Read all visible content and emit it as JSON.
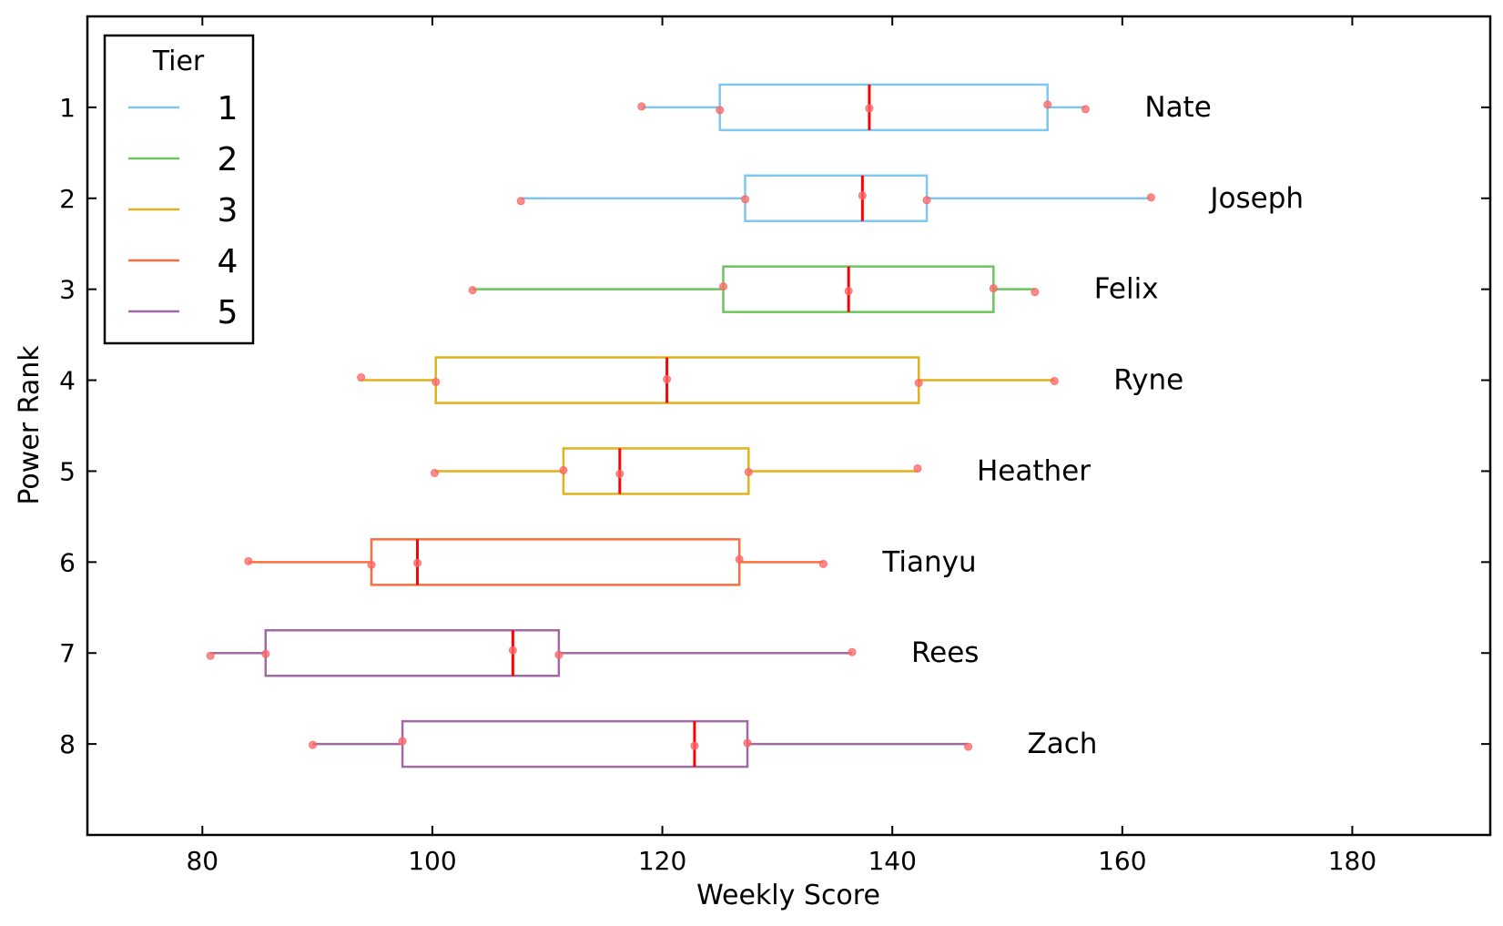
{
  "chart_data": {
    "type": "box",
    "orientation": "horizontal",
    "xlabel": "Weekly Score",
    "ylabel": "Power Rank",
    "xlim": [
      70,
      192
    ],
    "ylim": [
      9,
      0
    ],
    "xticks": [
      80,
      100,
      120,
      140,
      160,
      180
    ],
    "yticks": [
      1,
      2,
      3,
      4,
      5,
      6,
      7,
      8
    ],
    "grid": false,
    "median_color": "#ff0000",
    "point_color": "#ff6666",
    "legend": {
      "title": "Tier",
      "position": "top-left",
      "entries": [
        {
          "label": "1",
          "color": "#7ec8f0"
        },
        {
          "label": "2",
          "color": "#6cc65e"
        },
        {
          "label": "3",
          "color": "#e0b21a"
        },
        {
          "label": "4",
          "color": "#ff6d3a"
        },
        {
          "label": "5",
          "color": "#a06aa2"
        }
      ]
    },
    "series": [
      {
        "rank": 1,
        "name": "Nate",
        "tier": 1,
        "min": 118.2,
        "q1": 125.0,
        "median": 138.0,
        "q3": 153.5,
        "max": 156.8,
        "points": [
          118.2,
          125.0,
          138.0,
          153.5,
          156.8
        ]
      },
      {
        "rank": 2,
        "name": "Joseph",
        "tier": 1,
        "min": 107.7,
        "q1": 127.2,
        "median": 137.4,
        "q3": 143.0,
        "max": 162.5,
        "points": [
          107.7,
          127.2,
          137.4,
          143.0,
          162.5
        ]
      },
      {
        "rank": 3,
        "name": "Felix",
        "tier": 2,
        "min": 103.5,
        "q1": 125.3,
        "median": 136.2,
        "q3": 148.8,
        "max": 152.4,
        "points": [
          103.5,
          125.3,
          136.2,
          148.8,
          152.4
        ]
      },
      {
        "rank": 4,
        "name": "Ryne",
        "tier": 3,
        "min": 93.8,
        "q1": 100.3,
        "median": 120.4,
        "q3": 142.3,
        "max": 154.1,
        "points": [
          93.8,
          100.3,
          120.4,
          142.3,
          154.1
        ]
      },
      {
        "rank": 5,
        "name": "Heather",
        "tier": 3,
        "min": 100.2,
        "q1": 111.4,
        "median": 116.3,
        "q3": 127.5,
        "max": 142.2,
        "points": [
          100.2,
          111.4,
          116.3,
          127.5,
          142.2
        ]
      },
      {
        "rank": 6,
        "name": "Tianyu",
        "tier": 4,
        "min": 84.0,
        "q1": 94.7,
        "median": 98.7,
        "q3": 126.7,
        "max": 134.0,
        "points": [
          84.0,
          94.7,
          98.7,
          126.7,
          134.0
        ]
      },
      {
        "rank": 7,
        "name": "Rees",
        "tier": 5,
        "min": 80.7,
        "q1": 85.5,
        "median": 107.0,
        "q3": 111.0,
        "max": 136.5,
        "points": [
          80.7,
          85.5,
          107.0,
          111.0,
          136.5
        ]
      },
      {
        "rank": 8,
        "name": "Zach",
        "tier": 5,
        "min": 89.6,
        "q1": 97.4,
        "median": 122.8,
        "q3": 127.4,
        "max": 146.6,
        "points": [
          89.6,
          97.4,
          122.8,
          127.4,
          146.6
        ]
      }
    ]
  }
}
